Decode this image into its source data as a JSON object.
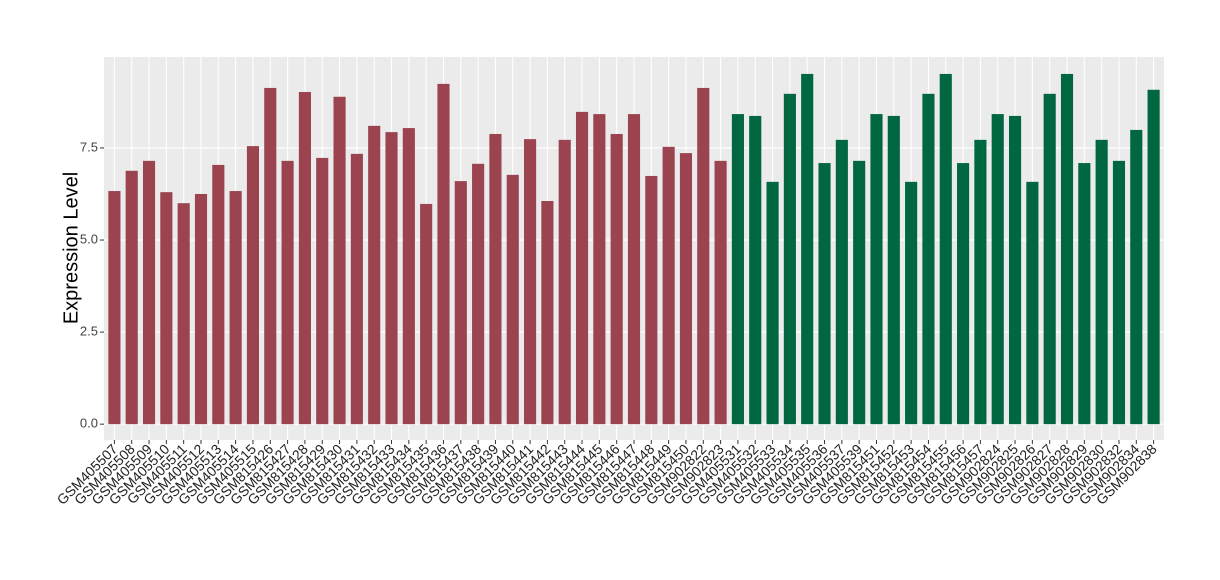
{
  "chart_data": {
    "type": "bar",
    "y_label": "Expression Level",
    "categories": [
      "GSM405507",
      "GSM405508",
      "GSM405509",
      "GSM405510",
      "GSM405511",
      "GSM405512",
      "GSM405513",
      "GSM405514",
      "GSM405515",
      "GSM815426",
      "GSM815427",
      "GSM815428",
      "GSM815429",
      "GSM815430",
      "GSM815431",
      "GSM815432",
      "GSM815433",
      "GSM815434",
      "GSM815435",
      "GSM815436",
      "GSM815437",
      "GSM815438",
      "GSM815439",
      "GSM815440",
      "GSM815441",
      "GSM815442",
      "GSM815443",
      "GSM815444",
      "GSM815445",
      "GSM815446",
      "GSM815447",
      "GSM815448",
      "GSM815449",
      "GSM815450",
      "GSM902822",
      "GSM902823",
      "GSM405531",
      "GSM405532",
      "GSM405533",
      "GSM405534",
      "GSM405535",
      "GSM405536",
      "GSM405537",
      "GSM405539",
      "GSM815451",
      "GSM815452",
      "GSM815453",
      "GSM815454",
      "GSM815455",
      "GSM815456",
      "GSM815457",
      "GSM902824",
      "GSM902825",
      "GSM902826",
      "GSM902827",
      "GSM902828",
      "GSM902829",
      "GSM902830",
      "GSM902832",
      "GSM902834",
      "GSM902838"
    ],
    "values": [
      6.33,
      6.88,
      7.15,
      6.3,
      6.0,
      6.25,
      7.04,
      6.33,
      7.55,
      9.13,
      7.15,
      9.02,
      7.23,
      8.89,
      7.34,
      8.1,
      7.93,
      8.04,
      5.98,
      9.24,
      6.6,
      7.07,
      7.88,
      6.77,
      7.74,
      6.06,
      7.72,
      8.48,
      8.42,
      7.88,
      8.42,
      6.74,
      7.53,
      7.36,
      9.13,
      7.15,
      8.42,
      8.37,
      6.58,
      8.97,
      9.51,
      7.09,
      7.72,
      7.15,
      8.42,
      8.37,
      6.58,
      8.97,
      9.51,
      7.09,
      7.72,
      8.42,
      8.37,
      6.58,
      8.97,
      9.51,
      7.09,
      7.72,
      7.15,
      7.99,
      9.08
    ],
    "colors": [
      "#9b4450",
      "#9b4450",
      "#9b4450",
      "#9b4450",
      "#9b4450",
      "#9b4450",
      "#9b4450",
      "#9b4450",
      "#9b4450",
      "#9b4450",
      "#9b4450",
      "#9b4450",
      "#9b4450",
      "#9b4450",
      "#9b4450",
      "#9b4450",
      "#9b4450",
      "#9b4450",
      "#9b4450",
      "#9b4450",
      "#9b4450",
      "#9b4450",
      "#9b4450",
      "#9b4450",
      "#9b4450",
      "#9b4450",
      "#9b4450",
      "#9b4450",
      "#9b4450",
      "#9b4450",
      "#9b4450",
      "#9b4450",
      "#9b4450",
      "#9b4450",
      "#9b4450",
      "#9b4450",
      "#006741",
      "#006741",
      "#006741",
      "#006741",
      "#006741",
      "#006741",
      "#006741",
      "#006741",
      "#006741",
      "#006741",
      "#006741",
      "#006741",
      "#006741",
      "#006741",
      "#006741",
      "#006741",
      "#006741",
      "#006741",
      "#006741",
      "#006741",
      "#006741",
      "#006741",
      "#006741",
      "#006741",
      "#006741"
    ],
    "ylim": [
      -0.43,
      9.97
    ],
    "yticks": [
      {
        "value": 0,
        "label": "0.0"
      },
      {
        "value": 2.5,
        "label": "2.5"
      },
      {
        "value": 5,
        "label": "5.0"
      },
      {
        "value": 7.5,
        "label": "7.5"
      }
    ],
    "grid": true
  }
}
